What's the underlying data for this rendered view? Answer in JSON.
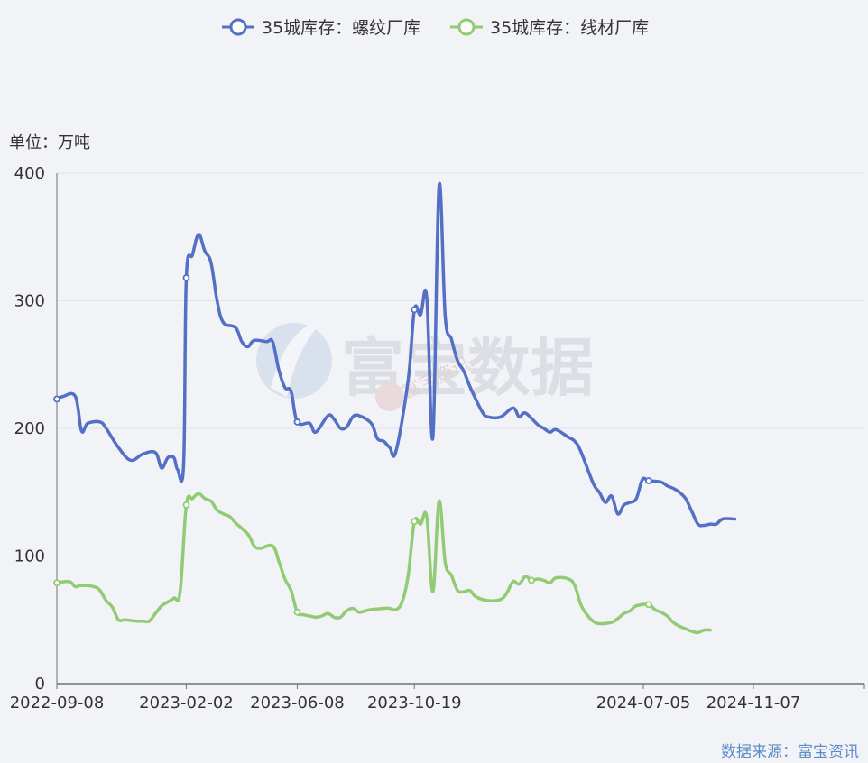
{
  "chart_data": {
    "type": "line",
    "ylabel": "单位：万吨",
    "ylim": [
      0,
      400
    ],
    "yticks": [
      0,
      100,
      200,
      300,
      400
    ],
    "xlim": [
      "2022-09-08",
      "2025-03-13"
    ],
    "xticks": [
      "2022-09-08",
      "2023-02-02",
      "2023-06-08",
      "2023-10-19",
      "2024-07-05",
      "2024-11-07"
    ],
    "grid": "horizontal",
    "legend_position": "top-center",
    "series": [
      {
        "name": "35城库存：螺纹厂库",
        "color": "#5470c6",
        "points": [
          [
            "2022-09-08",
            223
          ],
          [
            "2022-09-15",
            225
          ],
          [
            "2022-09-29",
            225
          ],
          [
            "2022-10-06",
            198
          ],
          [
            "2022-10-13",
            204
          ],
          [
            "2022-10-27",
            205
          ],
          [
            "2022-11-03",
            200
          ],
          [
            "2022-11-17",
            185
          ],
          [
            "2022-12-01",
            175
          ],
          [
            "2022-12-15",
            180
          ],
          [
            "2022-12-29",
            181
          ],
          [
            "2023-01-05",
            169
          ],
          [
            "2023-01-12",
            177
          ],
          [
            "2023-01-19",
            177
          ],
          [
            "2023-01-23",
            168
          ],
          [
            "2023-01-30",
            172
          ],
          [
            "2023-02-02",
            318
          ],
          [
            "2023-02-09",
            336
          ],
          [
            "2023-02-16",
            352
          ],
          [
            "2023-02-23",
            339
          ],
          [
            "2023-03-02",
            330
          ],
          [
            "2023-03-09",
            300
          ],
          [
            "2023-03-16",
            283
          ],
          [
            "2023-03-30",
            279
          ],
          [
            "2023-04-06",
            268
          ],
          [
            "2023-04-13",
            264
          ],
          [
            "2023-04-20",
            269
          ],
          [
            "2023-05-04",
            268
          ],
          [
            "2023-05-11",
            268
          ],
          [
            "2023-05-18",
            246
          ],
          [
            "2023-05-25",
            232
          ],
          [
            "2023-06-01",
            229
          ],
          [
            "2023-06-08",
            205
          ],
          [
            "2023-06-22",
            204
          ],
          [
            "2023-06-29",
            197
          ],
          [
            "2023-07-13",
            210
          ],
          [
            "2023-07-20",
            207
          ],
          [
            "2023-07-27",
            200
          ],
          [
            "2023-08-03",
            201
          ],
          [
            "2023-08-10",
            209
          ],
          [
            "2023-08-17",
            210
          ],
          [
            "2023-08-31",
            204
          ],
          [
            "2023-09-07",
            192
          ],
          [
            "2023-09-14",
            190
          ],
          [
            "2023-09-21",
            185
          ],
          [
            "2023-09-28",
            182
          ],
          [
            "2023-10-12",
            238
          ],
          [
            "2023-10-19",
            293
          ],
          [
            "2023-10-26",
            289
          ],
          [
            "2023-11-02",
            303
          ],
          [
            "2023-11-09",
            193
          ],
          [
            "2023-11-16",
            390
          ],
          [
            "2023-11-23",
            288
          ],
          [
            "2023-11-30",
            270
          ],
          [
            "2023-12-07",
            253
          ],
          [
            "2023-12-14",
            245
          ],
          [
            "2023-12-21",
            233
          ],
          [
            "2024-01-04",
            213
          ],
          [
            "2024-01-11",
            209
          ],
          [
            "2024-01-25",
            209
          ],
          [
            "2024-02-08",
            216
          ],
          [
            "2024-02-15",
            209
          ],
          [
            "2024-02-22",
            212
          ],
          [
            "2024-03-07",
            203
          ],
          [
            "2024-03-14",
            200
          ],
          [
            "2024-03-21",
            197
          ],
          [
            "2024-03-28",
            199
          ],
          [
            "2024-04-11",
            193
          ],
          [
            "2024-04-18",
            190
          ],
          [
            "2024-04-25",
            182
          ],
          [
            "2024-05-09",
            157
          ],
          [
            "2024-05-16",
            150
          ],
          [
            "2024-05-23",
            142
          ],
          [
            "2024-05-30",
            147
          ],
          [
            "2024-06-06",
            133
          ],
          [
            "2024-06-13",
            140
          ],
          [
            "2024-06-20",
            142
          ],
          [
            "2024-06-27",
            145
          ],
          [
            "2024-07-04",
            160
          ],
          [
            "2024-07-11",
            159
          ],
          [
            "2024-07-25",
            158
          ],
          [
            "2024-08-01",
            155
          ],
          [
            "2024-08-08",
            153
          ],
          [
            "2024-08-15",
            150
          ],
          [
            "2024-08-22",
            145
          ],
          [
            "2024-08-29",
            135
          ],
          [
            "2024-09-05",
            125
          ],
          [
            "2024-09-12",
            124
          ],
          [
            "2024-09-19",
            125
          ],
          [
            "2024-09-26",
            125
          ],
          [
            "2024-10-03",
            129
          ],
          [
            "2024-10-17",
            129
          ]
        ],
        "markers": [
          [
            "2022-09-08",
            223
          ],
          [
            "2023-02-02",
            318
          ],
          [
            "2023-06-08",
            205
          ],
          [
            "2023-10-19",
            293
          ],
          [
            "2024-07-11",
            159
          ]
        ]
      },
      {
        "name": "35城库存：线材厂库",
        "color": "#91cc75",
        "points": [
          [
            "2022-09-08",
            79
          ],
          [
            "2022-09-22",
            80
          ],
          [
            "2022-09-29",
            76
          ],
          [
            "2022-10-06",
            77
          ],
          [
            "2022-10-20",
            76
          ],
          [
            "2022-10-27",
            73
          ],
          [
            "2022-11-03",
            65
          ],
          [
            "2022-11-10",
            60
          ],
          [
            "2022-11-17",
            50
          ],
          [
            "2022-11-24",
            50
          ],
          [
            "2022-12-08",
            49
          ],
          [
            "2022-12-15",
            49
          ],
          [
            "2022-12-22",
            49
          ],
          [
            "2022-12-29",
            55
          ],
          [
            "2023-01-05",
            61
          ],
          [
            "2023-01-12",
            64
          ],
          [
            "2023-01-19",
            67
          ],
          [
            "2023-01-26",
            72
          ],
          [
            "2023-02-02",
            140
          ],
          [
            "2023-02-09",
            145
          ],
          [
            "2023-02-16",
            149
          ],
          [
            "2023-02-23",
            145
          ],
          [
            "2023-03-02",
            143
          ],
          [
            "2023-03-09",
            136
          ],
          [
            "2023-03-16",
            133
          ],
          [
            "2023-03-23",
            131
          ],
          [
            "2023-03-30",
            126
          ],
          [
            "2023-04-13",
            117
          ],
          [
            "2023-04-20",
            108
          ],
          [
            "2023-04-27",
            106
          ],
          [
            "2023-05-11",
            108
          ],
          [
            "2023-05-18",
            96
          ],
          [
            "2023-05-25",
            82
          ],
          [
            "2023-06-01",
            73
          ],
          [
            "2023-06-08",
            56
          ],
          [
            "2023-06-15",
            54
          ],
          [
            "2023-06-22",
            53
          ],
          [
            "2023-06-29",
            52
          ],
          [
            "2023-07-06",
            53
          ],
          [
            "2023-07-13",
            55
          ],
          [
            "2023-07-20",
            52
          ],
          [
            "2023-07-27",
            52
          ],
          [
            "2023-08-03",
            57
          ],
          [
            "2023-08-10",
            59
          ],
          [
            "2023-08-17",
            56
          ],
          [
            "2023-08-24",
            57
          ],
          [
            "2023-08-31",
            58
          ],
          [
            "2023-09-14",
            59
          ],
          [
            "2023-09-21",
            59
          ],
          [
            "2023-09-28",
            58
          ],
          [
            "2023-10-05",
            64
          ],
          [
            "2023-10-12",
            85
          ],
          [
            "2023-10-19",
            127
          ],
          [
            "2023-10-26",
            125
          ],
          [
            "2023-11-02",
            131
          ],
          [
            "2023-11-09",
            72
          ],
          [
            "2023-11-16",
            143
          ],
          [
            "2023-11-23",
            95
          ],
          [
            "2023-11-30",
            85
          ],
          [
            "2023-12-07",
            73
          ],
          [
            "2023-12-14",
            72
          ],
          [
            "2023-12-21",
            73
          ],
          [
            "2023-12-28",
            68
          ],
          [
            "2024-01-11",
            65
          ],
          [
            "2024-01-25",
            66
          ],
          [
            "2024-02-01",
            71
          ],
          [
            "2024-02-08",
            80
          ],
          [
            "2024-02-15",
            78
          ],
          [
            "2024-02-22",
            84
          ],
          [
            "2024-02-29",
            81
          ],
          [
            "2024-03-07",
            82
          ],
          [
            "2024-03-14",
            81
          ],
          [
            "2024-03-21",
            79
          ],
          [
            "2024-03-28",
            83
          ],
          [
            "2024-04-11",
            82
          ],
          [
            "2024-04-18",
            77
          ],
          [
            "2024-04-25",
            62
          ],
          [
            "2024-05-02",
            54
          ],
          [
            "2024-05-09",
            49
          ],
          [
            "2024-05-16",
            47
          ],
          [
            "2024-05-30",
            48
          ],
          [
            "2024-06-06",
            51
          ],
          [
            "2024-06-13",
            55
          ],
          [
            "2024-06-20",
            57
          ],
          [
            "2024-06-27",
            61
          ],
          [
            "2024-07-11",
            62
          ],
          [
            "2024-07-18",
            58
          ],
          [
            "2024-07-25",
            56
          ],
          [
            "2024-08-01",
            53
          ],
          [
            "2024-08-08",
            48
          ],
          [
            "2024-08-15",
            45
          ],
          [
            "2024-08-22",
            43
          ],
          [
            "2024-08-29",
            41
          ],
          [
            "2024-09-05",
            40
          ],
          [
            "2024-09-12",
            42
          ],
          [
            "2024-09-19",
            42
          ]
        ],
        "markers": [
          [
            "2022-09-08",
            79
          ],
          [
            "2023-02-02",
            140
          ],
          [
            "2023-06-08",
            56
          ],
          [
            "2023-10-19",
            127
          ],
          [
            "2024-02-29",
            81
          ],
          [
            "2024-07-11",
            62
          ]
        ]
      }
    ]
  },
  "watermark": {
    "main": "富宝数据",
    "small": "富宝资讯"
  },
  "source": "数据来源：富宝资讯"
}
